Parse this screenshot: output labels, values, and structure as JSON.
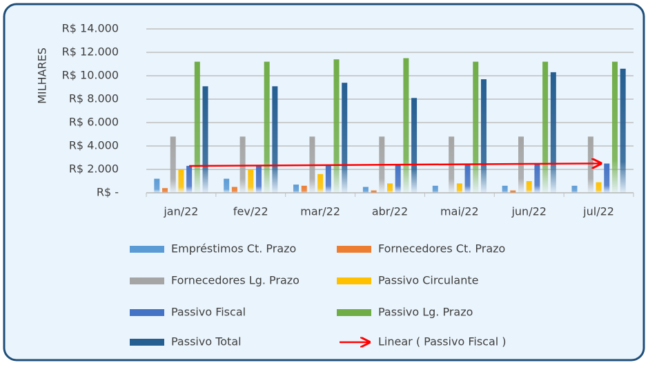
{
  "chart_data": {
    "type": "bar",
    "y_axis_label": "MILHARES",
    "categories": [
      "jan/22",
      "fev/22",
      "mar/22",
      "abr/22",
      "mai/22",
      "jun/22",
      "jul/22"
    ],
    "ylim": [
      0,
      14000
    ],
    "yticks": [
      {
        "value": 0,
        "label": "R$ -"
      },
      {
        "value": 2000,
        "label": "R$ 2.000"
      },
      {
        "value": 4000,
        "label": "R$ 4.000"
      },
      {
        "value": 6000,
        "label": "R$ 6.000"
      },
      {
        "value": 8000,
        "label": "R$ 8.000"
      },
      {
        "value": 10000,
        "label": "R$ 10.000"
      },
      {
        "value": 12000,
        "label": "R$ 12.000"
      },
      {
        "value": 14000,
        "label": "R$ 14.000"
      }
    ],
    "grid": true,
    "series": [
      {
        "name": "Empréstimos Ct. Prazo",
        "color": "#5b9bd5",
        "values": [
          1200,
          1200,
          700,
          500,
          600,
          600,
          600
        ]
      },
      {
        "name": "Fornecedores Ct. Prazo",
        "color": "#ed7d31",
        "values": [
          400,
          500,
          600,
          200,
          0,
          200,
          0
        ]
      },
      {
        "name": "Fornecedores Lg. Prazo",
        "color": "#a5a5a5",
        "values": [
          4800,
          4800,
          4800,
          4800,
          4800,
          4800,
          4800
        ]
      },
      {
        "name": "Passivo Circulante",
        "color": "#ffc000",
        "values": [
          2000,
          2000,
          1600,
          800,
          800,
          1000,
          900
        ]
      },
      {
        "name": "Passivo Fiscal",
        "color": "#4472c4",
        "values": [
          2300,
          2300,
          2400,
          2400,
          2400,
          2500,
          2500
        ]
      },
      {
        "name": "Passivo Lg. Prazo",
        "color": "#70ad47",
        "values": [
          11200,
          11200,
          11400,
          11500,
          11200,
          11200,
          11200
        ]
      },
      {
        "name": "Passivo Total",
        "color": "#255e91",
        "values": [
          9100,
          9100,
          9400,
          8100,
          9700,
          10300,
          10600
        ]
      }
    ],
    "trendline": {
      "name": "Linear ( Passivo Fiscal )",
      "series": 4,
      "color": "#ff0000"
    }
  }
}
